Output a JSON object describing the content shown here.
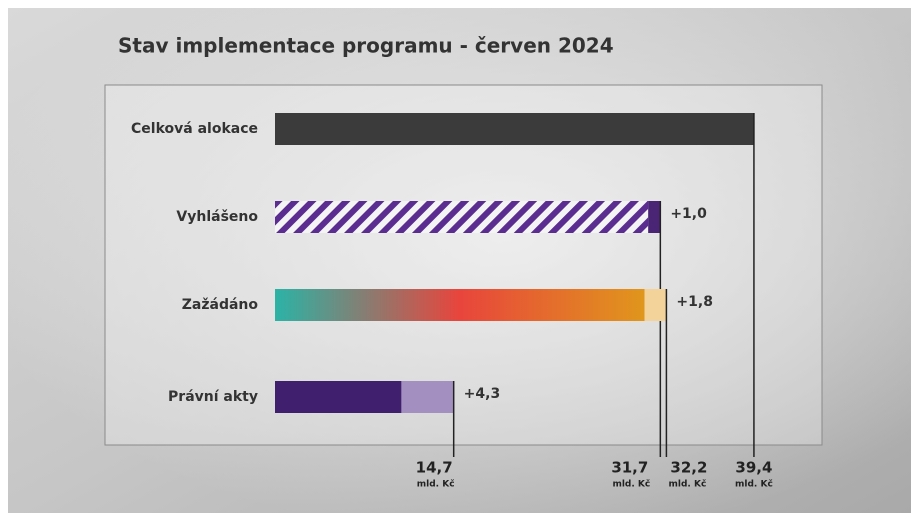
{
  "chart_data": {
    "type": "bar",
    "orientation": "horizontal",
    "title": "Stav implementace programu - červen 2024",
    "categories": [
      "Celková alokace",
      "Vyhlášeno",
      "Zažádáno",
      "Právní akty"
    ],
    "base": {
      "values": [
        39.4,
        30.7,
        30.4,
        10.4
      ],
      "colors": [
        "#3b3b3b",
        "#5c2d91",
        "#2bb3a6",
        "#3f1f6e"
      ],
      "styles": [
        "solid",
        "striped",
        "gradient",
        "solid"
      ]
    },
    "gradient_colors": [
      "#2bb3a6",
      "#e8453c",
      "#e0961c"
    ],
    "increments": {
      "values": [
        null,
        1.0,
        1.8,
        4.3
      ],
      "value_labels": [
        null,
        "+1,0",
        "+1,8",
        "+4,3"
      ],
      "colors": [
        null,
        "#4a2576",
        "#f3d39a",
        "#a48fc1"
      ]
    },
    "totals": {
      "values": [
        39.4,
        31.7,
        32.2,
        14.7
      ],
      "value_labels": [
        "39,4",
        "31,7",
        "32,2",
        "14,7"
      ]
    },
    "unit": "mld. Kč",
    "xlim": [
      0,
      45
    ]
  }
}
